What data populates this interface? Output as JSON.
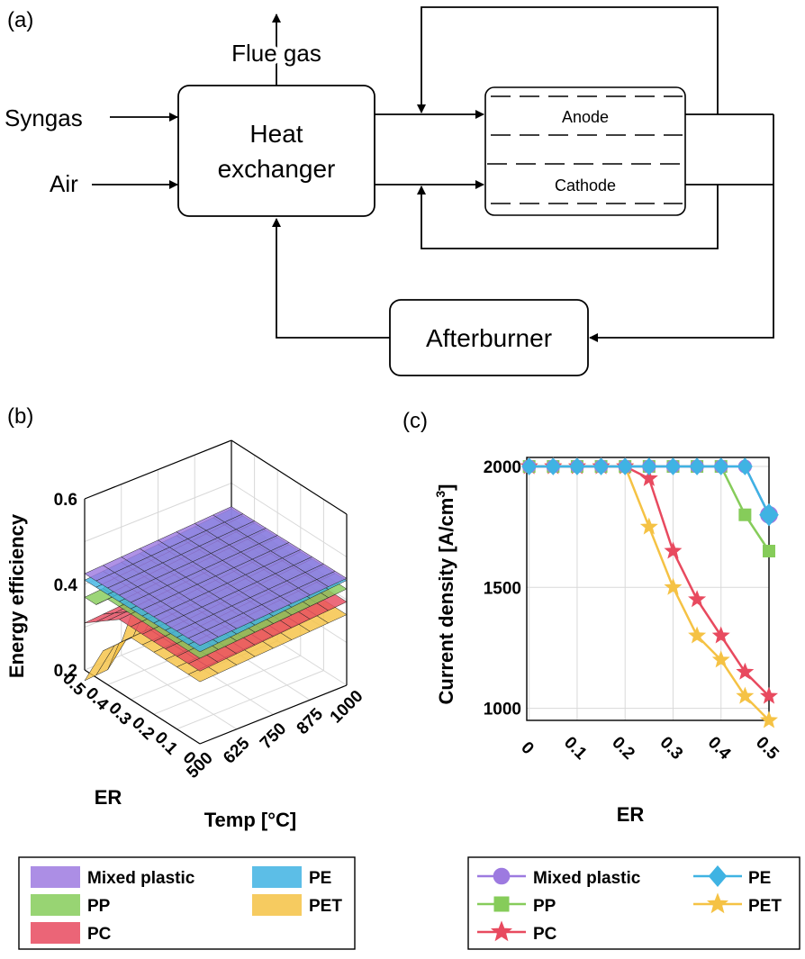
{
  "panel_a": {
    "label": "(a)",
    "heat_exchanger": [
      "Heat",
      "exchanger"
    ],
    "flue_gas": "Flue gas",
    "syngas": "Syngas",
    "air": "Air",
    "anode": "Anode",
    "cathode": "Cathode",
    "afterburner": "Afterburner"
  },
  "panel_b": {
    "label": "(b)",
    "zlabel": "Energy efficiency",
    "xlabel": "ER",
    "ylabel": "Temp [°C]",
    "z_ticks": [
      "0.6",
      "0.4",
      "0.2"
    ],
    "er_ticks": [
      "0.5",
      "0.4",
      "0.3",
      "0.2",
      "0.1",
      "0"
    ],
    "temp_ticks": [
      "500",
      "625",
      "750",
      "875",
      "1000"
    ],
    "legend": [
      "Mixed plastic",
      "PE",
      "PP",
      "PET",
      "PC"
    ]
  },
  "panel_c": {
    "label": "(c)",
    "xlabel": "ER",
    "ylabel_main": "Current density [A/cm",
    "ylabel_sup": "3",
    "ylabel_end": "]",
    "y_ticks": [
      "2000",
      "1500",
      "1000"
    ],
    "x_ticks": [
      "0",
      "0.1",
      "0.2",
      "0.3",
      "0.4",
      "0.5"
    ],
    "legend": [
      "Mixed plastic",
      "PE",
      "PP",
      "PET",
      "PC"
    ]
  },
  "colors": {
    "mixed": "#9d7ae0",
    "pe": "#3fb3e3",
    "pp": "#86cc5a",
    "pet": "#f5c244",
    "pc": "#e84a5f"
  },
  "chart_data": [
    {
      "type": "surface",
      "xlabel": "ER",
      "ylabel": "Temp [°C]",
      "zlabel": "Energy efficiency",
      "xlim": [
        0,
        0.5
      ],
      "ylim": [
        500,
        1000
      ],
      "zlim": [
        0.2,
        0.6
      ],
      "series": [
        {
          "name": "Mixed plastic",
          "approx_range": [
            0.42,
            0.46
          ]
        },
        {
          "name": "PE",
          "approx_range": [
            0.4,
            0.45
          ]
        },
        {
          "name": "PP",
          "approx_range": [
            0.36,
            0.44
          ]
        },
        {
          "name": "PC",
          "approx_range": [
            0.3,
            0.4
          ]
        },
        {
          "name": "PET",
          "approx_range": [
            0.24,
            0.38
          ]
        }
      ]
    },
    {
      "type": "line",
      "xlabel": "ER",
      "ylabel": "Current density [A/cm3]",
      "xlim": [
        0,
        0.5
      ],
      "ylim": [
        950,
        2000
      ],
      "x": [
        0,
        0.05,
        0.1,
        0.15,
        0.2,
        0.25,
        0.3,
        0.35,
        0.4,
        0.45,
        0.5
      ],
      "series": [
        {
          "name": "Mixed plastic",
          "values": [
            2000,
            2000,
            2000,
            2000,
            2000,
            2000,
            2000,
            2000,
            2000,
            2000,
            1800
          ]
        },
        {
          "name": "PE",
          "values": [
            2000,
            2000,
            2000,
            2000,
            2000,
            2000,
            2000,
            2000,
            2000,
            2000,
            1800
          ]
        },
        {
          "name": "PP",
          "values": [
            2000,
            2000,
            2000,
            2000,
            2000,
            2000,
            2000,
            2000,
            2000,
            1800,
            1650
          ]
        },
        {
          "name": "PC",
          "values": [
            2000,
            2000,
            2000,
            2000,
            2000,
            1950,
            1650,
            1450,
            1300,
            1150,
            1050
          ]
        },
        {
          "name": "PET",
          "values": [
            2000,
            2000,
            2000,
            2000,
            2000,
            1750,
            1500,
            1300,
            1200,
            1050,
            950
          ]
        }
      ]
    }
  ]
}
